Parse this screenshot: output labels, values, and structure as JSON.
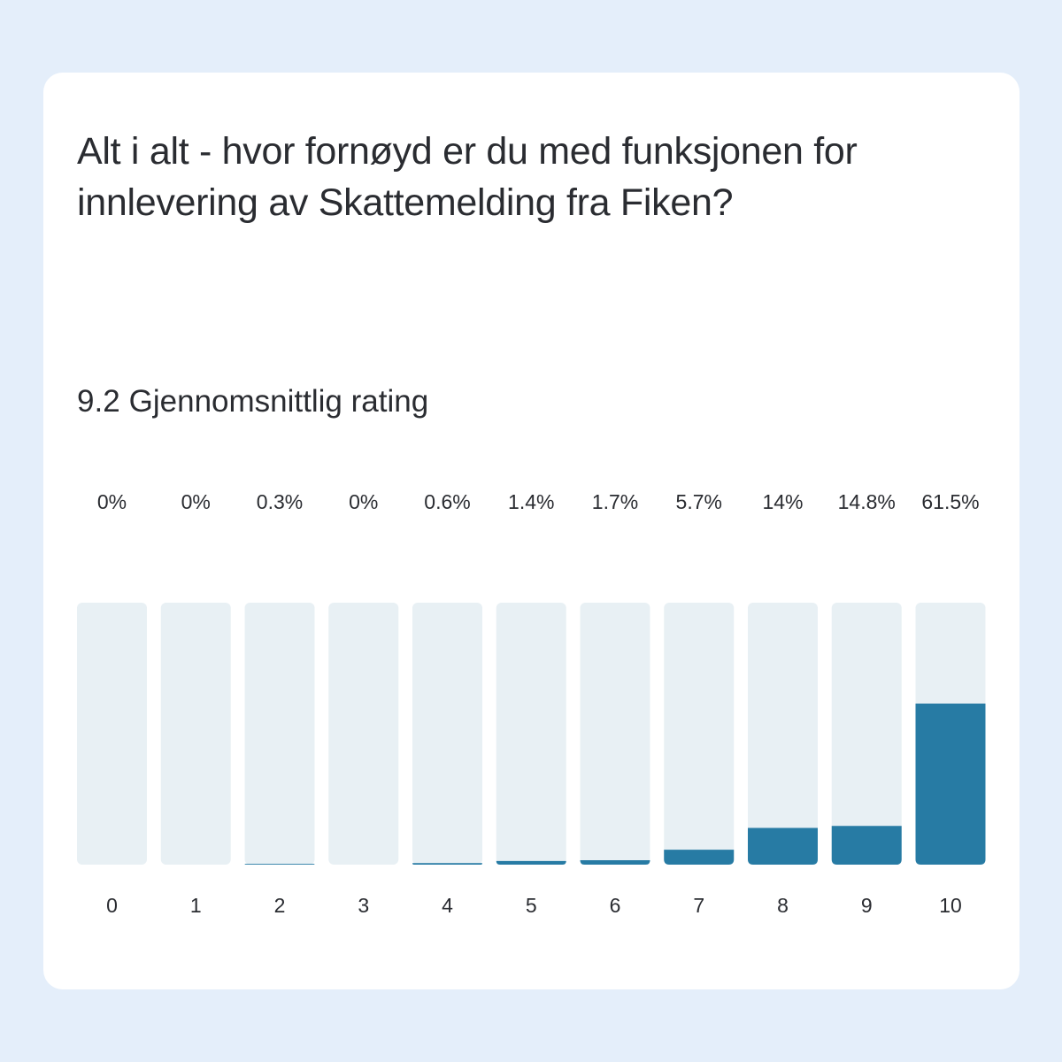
{
  "question": "Alt i alt - hvor fornøyd er du med funksjonen for innlevering av Skattemelding fra Fiken?",
  "average": {
    "value": "9.2",
    "label": "Gjennomsnittlig rating"
  },
  "colors": {
    "background": "#e4eefa",
    "card": "#ffffff",
    "track": "#e8f0f4",
    "bar": "#277ba4",
    "text": "#2a2c31"
  },
  "chart_data": {
    "type": "bar",
    "categories": [
      "0",
      "1",
      "2",
      "3",
      "4",
      "5",
      "6",
      "7",
      "8",
      "9",
      "10"
    ],
    "values": [
      0,
      0,
      0.3,
      0,
      0.6,
      1.4,
      1.7,
      5.7,
      14,
      14.8,
      61.5
    ],
    "value_labels": [
      "0%",
      "0%",
      "0.3%",
      "0%",
      "0.6%",
      "1.4%",
      "1.7%",
      "5.7%",
      "14%",
      "14.8%",
      "61.5%"
    ],
    "ylim": [
      0,
      100
    ],
    "grid": false,
    "legend": "none"
  }
}
